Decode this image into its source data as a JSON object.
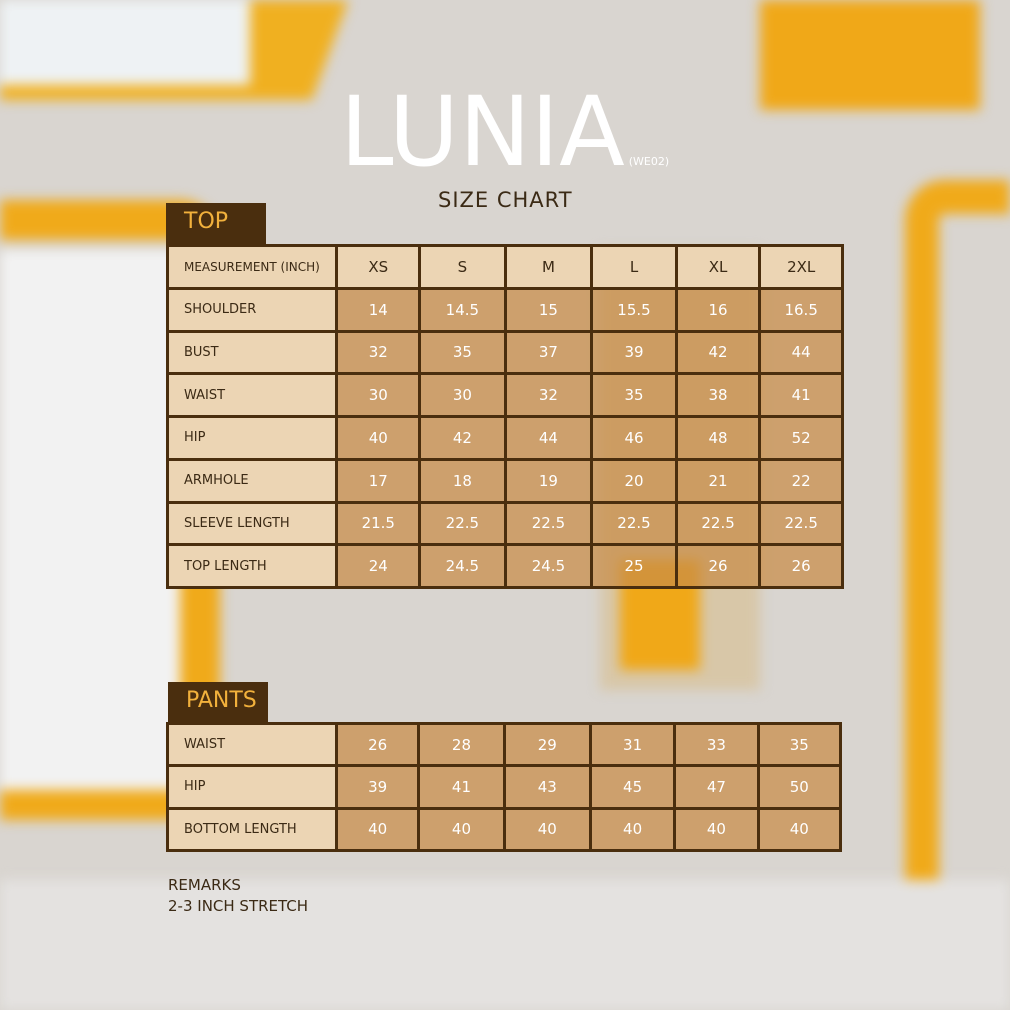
{
  "brand": {
    "name": "LUNIA",
    "code": "(WE02)",
    "subtitle": "SIZE CHART"
  },
  "colors": {
    "frame": "#4a2e0e",
    "tab_text": "#f2b13c",
    "label_bg": "#ecd5b4",
    "cell_bg": "#c88c46"
  },
  "top": {
    "tab": "TOP",
    "header": [
      "MEASUREMENT (INCH)",
      "XS",
      "S",
      "M",
      "L",
      "XL",
      "2XL"
    ],
    "rows": [
      {
        "label": "SHOULDER",
        "values": [
          "14",
          "14.5",
          "15",
          "15.5",
          "16",
          "16.5"
        ]
      },
      {
        "label": "BUST",
        "values": [
          "32",
          "35",
          "37",
          "39",
          "42",
          "44"
        ]
      },
      {
        "label": "WAIST",
        "values": [
          "30",
          "30",
          "32",
          "35",
          "38",
          "41"
        ]
      },
      {
        "label": "HIP",
        "values": [
          "40",
          "42",
          "44",
          "46",
          "48",
          "52"
        ]
      },
      {
        "label": "ARMHOLE",
        "values": [
          "17",
          "18",
          "19",
          "20",
          "21",
          "22"
        ]
      },
      {
        "label": "SLEEVE LENGTH",
        "values": [
          "21.5",
          "22.5",
          "22.5",
          "22.5",
          "22.5",
          "22.5"
        ]
      },
      {
        "label": "TOP LENGTH",
        "values": [
          "24",
          "24.5",
          "24.5",
          "25",
          "26",
          "26"
        ]
      }
    ]
  },
  "pants": {
    "tab": "PANTS",
    "rows": [
      {
        "label": "WAIST",
        "values": [
          "26",
          "28",
          "29",
          "31",
          "33",
          "35"
        ]
      },
      {
        "label": "HIP",
        "values": [
          "39",
          "41",
          "43",
          "45",
          "47",
          "50"
        ]
      },
      {
        "label": "BOTTOM LENGTH",
        "values": [
          "40",
          "40",
          "40",
          "40",
          "40",
          "40"
        ]
      }
    ]
  },
  "remarks": {
    "title": "REMARKS",
    "text": "2-3 INCH STRETCH"
  }
}
